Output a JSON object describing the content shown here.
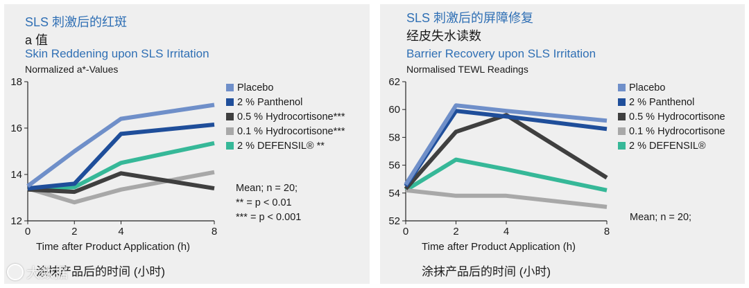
{
  "left": {
    "title_cn": "SLS 刺激后的红斑",
    "subtitle_cn": "a 值",
    "title_en": "Skin Reddening upon SLS Irritation",
    "subtitle_en": "Normalized a*-Values",
    "xlabel_en": "Time after Product Application (h)",
    "xlabel_cn": "涂抹产品后的时间 (小时)",
    "notes": [
      "Mean; n = 20;",
      "** = p < 0.01",
      "*** = p < 0.001"
    ]
  },
  "right": {
    "title_cn": "SLS 刺激后的屏障修复",
    "subtitle_cn": "经皮失水读数",
    "title_en": "Barrier Recovery upon SLS Irritation",
    "subtitle_en": "Normalised TEWL Readings",
    "xlabel_en": "Time after Product Application (h)",
    "xlabel_cn": "涂抹产品后的时间 (小时)",
    "notes": [
      "Mean; n = 20;"
    ]
  },
  "watermark": "大数据",
  "chart_data": [
    {
      "type": "line",
      "title": "Skin Reddening upon SLS Irritation",
      "subtitle": "Normalized a*-Values",
      "xlabel": "Time after Product Application (h)",
      "ylabel": "",
      "x": [
        0,
        2,
        4,
        8
      ],
      "xticks": [
        0,
        2,
        4,
        8
      ],
      "yticks": [
        12,
        14,
        16,
        18
      ],
      "xlim": [
        0,
        8
      ],
      "ylim": [
        12,
        18
      ],
      "grid": false,
      "legend": "right",
      "series": [
        {
          "name": "Placebo",
          "color": "#6f8fc9",
          "values": [
            13.5,
            15.0,
            16.4,
            17.0
          ]
        },
        {
          "name": "2 % Panthenol",
          "color": "#1f4e9a",
          "values": [
            13.4,
            13.6,
            15.75,
            16.15
          ]
        },
        {
          "name": "0.5 % Hydrocortisone***",
          "color": "#3f3f3f",
          "values": [
            13.35,
            13.25,
            14.05,
            13.4
          ]
        },
        {
          "name": "0.1 % Hydrocortisone***",
          "color": "#a8a8a8",
          "values": [
            13.4,
            12.8,
            13.35,
            14.1
          ]
        },
        {
          "name": "2 % DEFENSIL® **",
          "color": "#36b898",
          "values": [
            13.4,
            13.45,
            14.5,
            15.35
          ]
        }
      ]
    },
    {
      "type": "line",
      "title": "Barrier Recovery upon SLS Irritation",
      "subtitle": "Normalised TEWL Readings",
      "xlabel": "Time after Product Application (h)",
      "ylabel": "",
      "x": [
        0,
        2,
        4,
        8
      ],
      "xticks": [
        0,
        2,
        4,
        8
      ],
      "yticks": [
        52,
        54,
        56,
        58,
        60,
        62
      ],
      "xlim": [
        0,
        8
      ],
      "ylim": [
        52,
        62
      ],
      "grid": false,
      "legend": "right",
      "series": [
        {
          "name": "Placebo",
          "color": "#6f8fc9",
          "values": [
            54.6,
            60.3,
            59.9,
            59.2
          ]
        },
        {
          "name": "2 % Panthenol",
          "color": "#1f4e9a",
          "values": [
            54.5,
            59.9,
            59.5,
            58.6
          ]
        },
        {
          "name": "0.5 % Hydrocortisone",
          "color": "#3f3f3f",
          "values": [
            54.3,
            58.4,
            59.6,
            55.1
          ]
        },
        {
          "name": "0.1 % Hydrocortisone",
          "color": "#a8a8a8",
          "values": [
            54.2,
            53.8,
            53.8,
            53.0
          ]
        },
        {
          "name": "2 % DEFENSIL®",
          "color": "#36b898",
          "values": [
            54.2,
            56.4,
            55.7,
            54.2
          ]
        }
      ]
    }
  ]
}
